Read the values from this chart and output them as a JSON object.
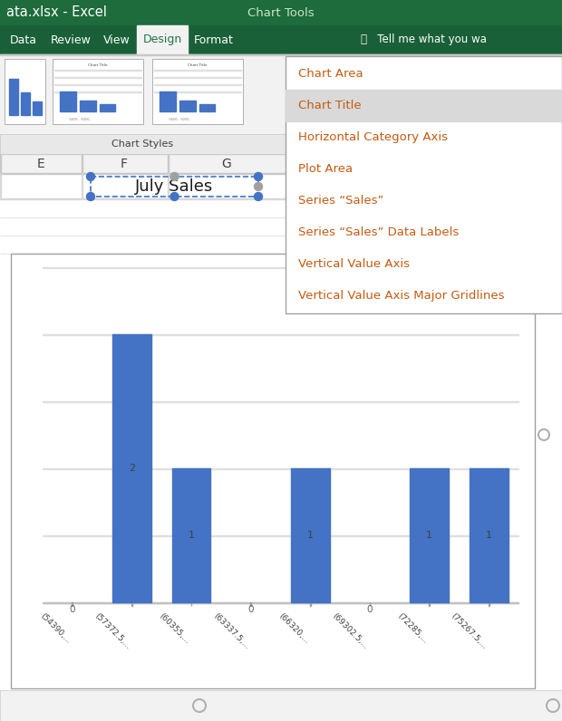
{
  "title_bar_text": "ata.xlsx - Excel",
  "chart_tools_text": "Chart Tools",
  "tabs": [
    "Data",
    "Review",
    "View",
    "Design",
    "Format"
  ],
  "active_tab": "Design",
  "tell_me_text": "  Tell me what you wa",
  "chart_styles_label": "Chart Styles",
  "col_labels": [
    "E",
    "F",
    "G"
  ],
  "cell_title": "July Sales",
  "dropdown_items": [
    "Chart Area",
    "Chart Title",
    "Horizontal Category Axis",
    "Plot Area",
    "Series “Sales”",
    "Series “Sales” Data Labels",
    "Vertical Value Axis",
    "Vertical Value Axis Major Gridlines"
  ],
  "dropdown_selected": "Chart Title",
  "dropdown_selected_bg": "#d9d9d9",
  "dropdown_text_color": "#c55a11",
  "bar_values": [
    0,
    2,
    1,
    0,
    1,
    0,
    1,
    1
  ],
  "bar_color": "#4472c4",
  "x_labels": [
    "(54390,...",
    "(57372.5,...",
    "(60355,...",
    "(63337.5,...",
    "(66320,...",
    "(69302.5,...",
    "(72285,...",
    "(75267.5,..."
  ],
  "chart_bg": "#ffffff",
  "excel_green_dark": "#1e6b3c",
  "excel_green_tab": "#196038",
  "excel_green_active": "#217346",
  "ribbon_bg": "#f2f2f2",
  "sheet_bg": "#ffffff",
  "grid_color": "#e8e8e8",
  "scrollbar_color": "#a0a0a0"
}
